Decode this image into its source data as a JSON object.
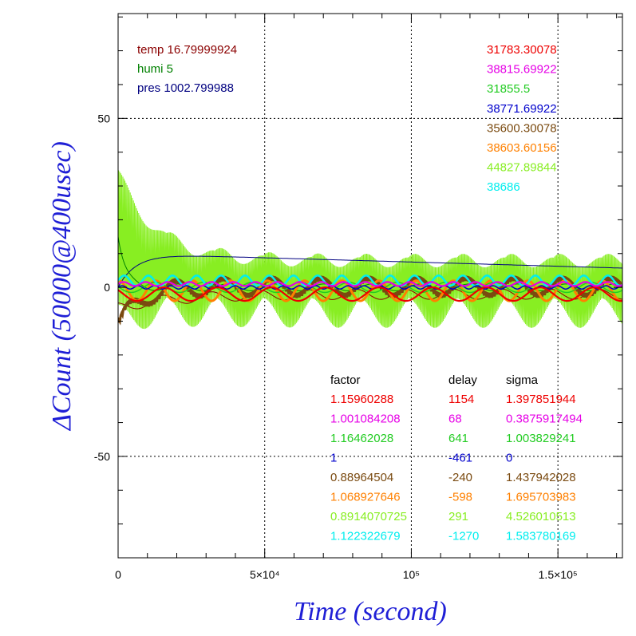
{
  "colors": {
    "temp": "#8b0000",
    "humi": "#008000",
    "pres": "#000080",
    "grid": "#000000",
    "axis_title": "#1f1fd6"
  },
  "chart_data": {
    "type": "line",
    "xlabel": "Time (second)",
    "ylabel": "ΔCount (50000@400usec)",
    "xlim": [
      0,
      172000
    ],
    "ylim": [
      -80,
      81
    ],
    "x_ticks": [
      {
        "value": 0,
        "label": "0"
      },
      {
        "value": 50000,
        "label": "5×10⁴"
      },
      {
        "value": 100000,
        "label": "10⁵"
      },
      {
        "value": 150000,
        "label": "1.5×10⁵"
      }
    ],
    "y_ticks": [
      {
        "value": 50,
        "label": "50"
      },
      {
        "value": 0,
        "label": "0"
      },
      {
        "value": -50,
        "label": "-50"
      }
    ],
    "grid": "dotted",
    "env": [
      {
        "key": "temp",
        "label": "temp",
        "value": "16.79999924",
        "color": "#8b0000"
      },
      {
        "key": "humi",
        "label": "humi",
        "value": "5",
        "color": "#008000"
      },
      {
        "key": "pres",
        "label": "pres",
        "value": "1002.799988",
        "color": "#000080"
      }
    ],
    "table_headers": [
      "factor",
      "delay",
      "sigma"
    ],
    "series": [
      {
        "color": "#ee0000",
        "count": "31783.30078",
        "factor": "1.15960288",
        "delay": "1154",
        "sigma": "1.397851944",
        "width": 2.2
      },
      {
        "color": "#e600e6",
        "count": "38815.69922",
        "factor": "1.001084208",
        "delay": "68",
        "sigma": "0.3875917494",
        "width": 2.2
      },
      {
        "color": "#22cc22",
        "count": "31855.5",
        "factor": "1.16462028",
        "delay": "641",
        "sigma": "1.003829241",
        "width": 1.5
      },
      {
        "color": "#0000cc",
        "count": "38771.69922",
        "factor": "1",
        "delay": "-461",
        "sigma": "0",
        "width": 1.5
      },
      {
        "color": "#7a4a10",
        "count": "35600.30078",
        "factor": "0.88964504",
        "delay": "-240",
        "sigma": "1.437942028",
        "width": 3
      },
      {
        "color": "#ff8000",
        "count": "38603.60156",
        "factor": "1.068927646",
        "delay": "-598",
        "sigma": "1.695703983",
        "width": 3
      },
      {
        "color": "#88ee22",
        "count": "44827.89844",
        "factor": "0.8914070725",
        "delay": "291",
        "sigma": "4.526010513",
        "width": 1
      },
      {
        "color": "#00eeee",
        "count": "38686",
        "factor": "1.122322679",
        "delay": "-1270",
        "sigma": "1.583780169",
        "width": 2.5
      }
    ]
  }
}
